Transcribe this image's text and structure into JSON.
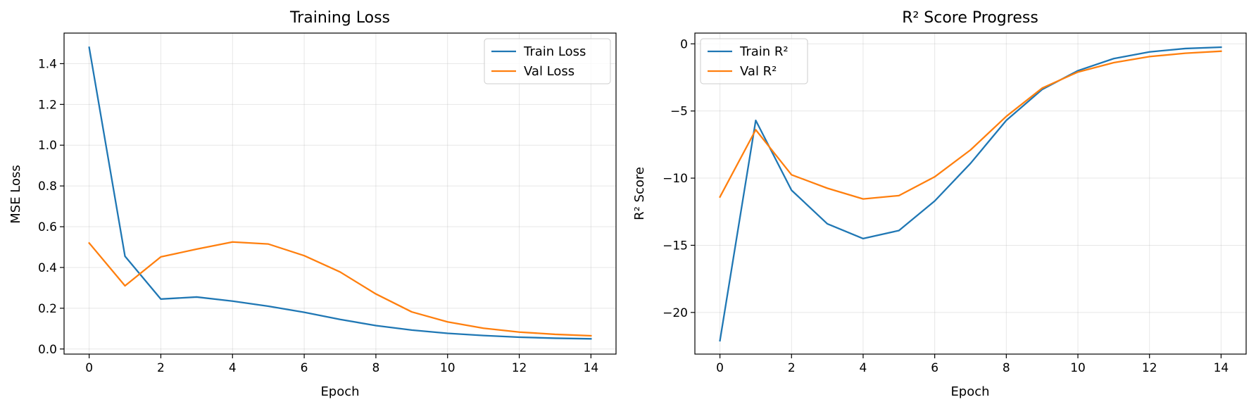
{
  "chart_data": [
    {
      "type": "line",
      "title": "Training Loss",
      "xlabel": "Epoch",
      "ylabel": "MSE Loss",
      "x": [
        0,
        1,
        2,
        3,
        4,
        5,
        6,
        7,
        8,
        9,
        10,
        11,
        12,
        13,
        14
      ],
      "xlim": [
        -0.7,
        14.7
      ],
      "ylim": [
        -0.025,
        1.55
      ],
      "xticks": [
        0,
        2,
        4,
        6,
        8,
        10,
        12,
        14
      ],
      "xtick_labels": [
        "0",
        "2",
        "4",
        "6",
        "8",
        "10",
        "12",
        "14"
      ],
      "yticks": [
        0.0,
        0.2,
        0.4,
        0.6,
        0.8,
        1.0,
        1.2,
        1.4
      ],
      "ytick_labels": [
        "0.0",
        "0.2",
        "0.4",
        "0.6",
        "0.8",
        "1.0",
        "1.2",
        "1.4"
      ],
      "grid": true,
      "legend_position": "top-right",
      "series": [
        {
          "name": "Train Loss",
          "color": "#1f77b4",
          "values": [
            1.48,
            0.455,
            0.245,
            0.255,
            0.235,
            0.21,
            0.18,
            0.145,
            0.115,
            0.093,
            0.077,
            0.066,
            0.058,
            0.053,
            0.05
          ]
        },
        {
          "name": "Val Loss",
          "color": "#ff7f0e",
          "values": [
            0.52,
            0.31,
            0.452,
            0.49,
            0.525,
            0.515,
            0.458,
            0.378,
            0.27,
            0.182,
            0.133,
            0.102,
            0.083,
            0.072,
            0.065
          ]
        }
      ]
    },
    {
      "type": "line",
      "title": "R² Score Progress",
      "xlabel": "Epoch",
      "ylabel": "R² Score",
      "x": [
        0,
        1,
        2,
        3,
        4,
        5,
        6,
        7,
        8,
        9,
        10,
        11,
        12,
        13,
        14
      ],
      "xlim": [
        -0.7,
        14.7
      ],
      "ylim": [
        -23.1,
        0.8
      ],
      "xticks": [
        0,
        2,
        4,
        6,
        8,
        10,
        12,
        14
      ],
      "xtick_labels": [
        "0",
        "2",
        "4",
        "6",
        "8",
        "10",
        "12",
        "14"
      ],
      "yticks": [
        -20,
        -15,
        -10,
        -5,
        0
      ],
      "ytick_labels": [
        "−20",
        "−15",
        "−10",
        "−5",
        "0"
      ],
      "grid": true,
      "legend_position": "top-left",
      "series": [
        {
          "name": "Train R²",
          "color": "#1f77b4",
          "values": [
            -22.1,
            -5.7,
            -10.9,
            -13.4,
            -14.5,
            -13.9,
            -11.7,
            -8.9,
            -5.7,
            -3.4,
            -2.0,
            -1.1,
            -0.6,
            -0.35,
            -0.25
          ]
        },
        {
          "name": "Val R²",
          "color": "#ff7f0e",
          "values": [
            -11.4,
            -6.4,
            -9.75,
            -10.75,
            -11.55,
            -11.3,
            -9.9,
            -7.9,
            -5.4,
            -3.3,
            -2.1,
            -1.4,
            -0.95,
            -0.7,
            -0.55
          ]
        }
      ]
    }
  ]
}
